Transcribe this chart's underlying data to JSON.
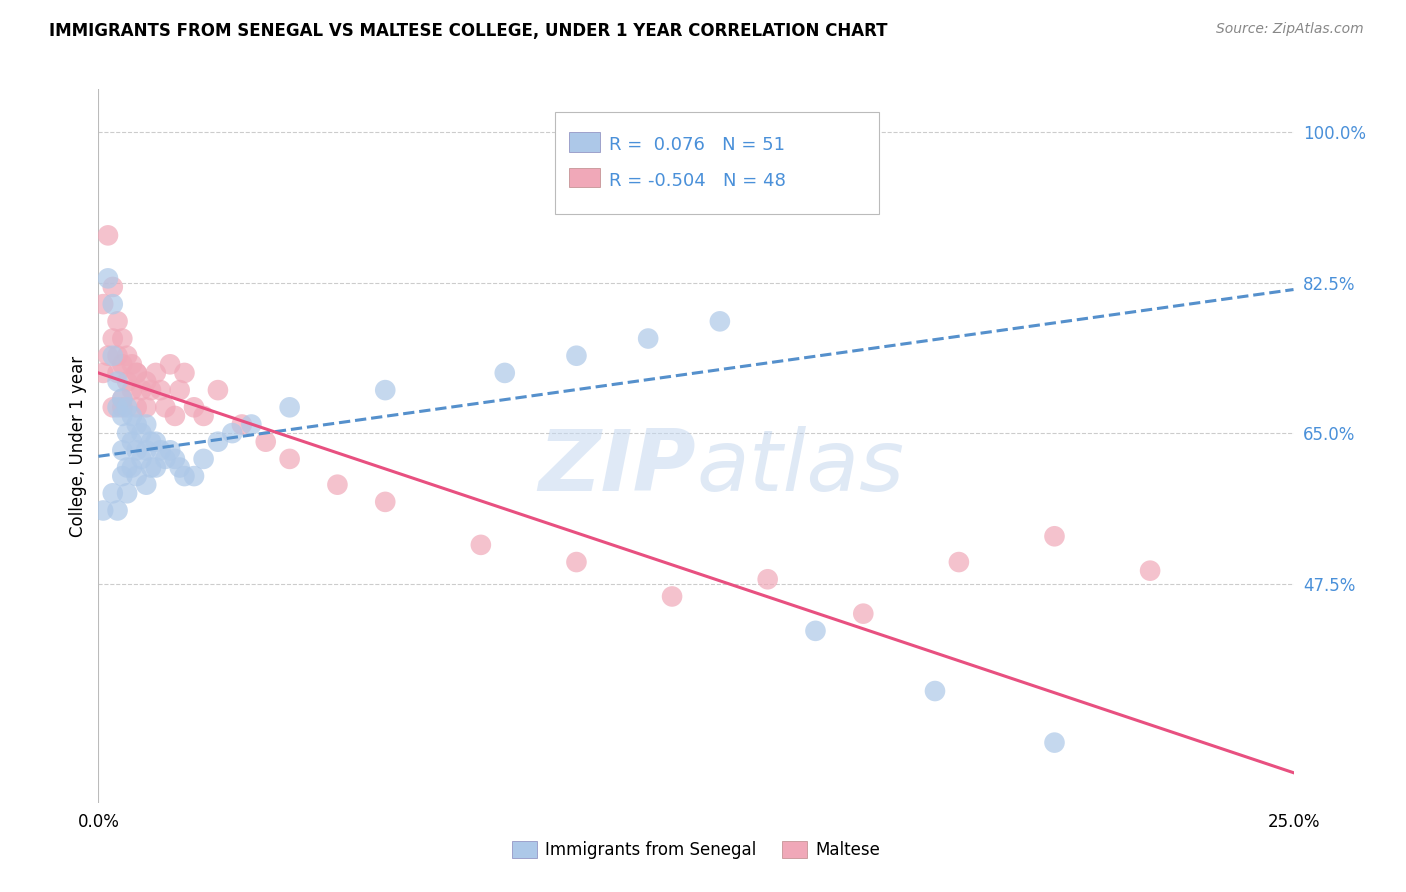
{
  "title": "IMMIGRANTS FROM SENEGAL VS MALTESE COLLEGE, UNDER 1 YEAR CORRELATION CHART",
  "source": "Source: ZipAtlas.com",
  "ylabel": "College, Under 1 year",
  "watermark": "ZIPatlas",
  "series1_label": "Immigrants from Senegal",
  "series2_label": "Maltese",
  "series1_R": "0.076",
  "series1_N": "51",
  "series2_R": "-0.504",
  "series2_N": "48",
  "xlim": [
    0.0,
    0.25
  ],
  "ylim": [
    0.22,
    1.05
  ],
  "yticks": [
    0.475,
    0.65,
    0.825,
    1.0
  ],
  "ytick_labels": [
    "47.5%",
    "65.0%",
    "82.5%",
    "100.0%"
  ],
  "xticks": [
    0.0,
    0.05,
    0.1,
    0.15,
    0.2,
    0.25
  ],
  "xtick_labels": [
    "0.0%",
    "",
    "",
    "",
    "",
    "25.0%"
  ],
  "series1_color": "#adc8e8",
  "series2_color": "#f0a8b8",
  "series1_line_color": "#5590cc",
  "series2_line_color": "#e85080",
  "right_tick_color": "#4a90d9",
  "legend_text_color": "#4a90d9",
  "grid_color": "#cccccc",
  "background_color": "#ffffff",
  "series1_x": [
    0.002,
    0.003,
    0.003,
    0.004,
    0.004,
    0.005,
    0.005,
    0.005,
    0.005,
    0.006,
    0.006,
    0.006,
    0.007,
    0.007,
    0.007,
    0.008,
    0.008,
    0.008,
    0.009,
    0.009,
    0.01,
    0.01,
    0.01,
    0.011,
    0.011,
    0.012,
    0.012,
    0.013,
    0.014,
    0.015,
    0.016,
    0.017,
    0.018,
    0.02,
    0.022,
    0.025,
    0.028,
    0.032,
    0.04,
    0.06,
    0.085,
    0.1,
    0.115,
    0.13,
    0.15,
    0.175,
    0.2,
    0.001,
    0.003,
    0.004,
    0.006
  ],
  "series1_y": [
    0.83,
    0.8,
    0.74,
    0.71,
    0.68,
    0.69,
    0.67,
    0.63,
    0.6,
    0.68,
    0.65,
    0.61,
    0.67,
    0.64,
    0.61,
    0.66,
    0.63,
    0.6,
    0.65,
    0.62,
    0.66,
    0.63,
    0.59,
    0.64,
    0.61,
    0.64,
    0.61,
    0.63,
    0.62,
    0.63,
    0.62,
    0.61,
    0.6,
    0.6,
    0.62,
    0.64,
    0.65,
    0.66,
    0.68,
    0.7,
    0.72,
    0.74,
    0.76,
    0.78,
    0.42,
    0.35,
    0.29,
    0.56,
    0.58,
    0.56,
    0.58
  ],
  "series2_x": [
    0.001,
    0.002,
    0.003,
    0.003,
    0.004,
    0.004,
    0.005,
    0.005,
    0.005,
    0.006,
    0.006,
    0.007,
    0.007,
    0.008,
    0.008,
    0.009,
    0.01,
    0.01,
    0.011,
    0.012,
    0.013,
    0.014,
    0.015,
    0.016,
    0.017,
    0.018,
    0.02,
    0.022,
    0.025,
    0.03,
    0.035,
    0.04,
    0.05,
    0.06,
    0.08,
    0.1,
    0.12,
    0.14,
    0.16,
    0.18,
    0.2,
    0.22,
    0.001,
    0.002,
    0.003,
    0.004,
    0.005,
    0.008
  ],
  "series2_y": [
    0.8,
    0.88,
    0.82,
    0.76,
    0.78,
    0.74,
    0.76,
    0.73,
    0.69,
    0.74,
    0.71,
    0.73,
    0.7,
    0.72,
    0.68,
    0.7,
    0.71,
    0.68,
    0.7,
    0.72,
    0.7,
    0.68,
    0.73,
    0.67,
    0.7,
    0.72,
    0.68,
    0.67,
    0.7,
    0.66,
    0.64,
    0.62,
    0.59,
    0.57,
    0.52,
    0.5,
    0.46,
    0.48,
    0.44,
    0.5,
    0.53,
    0.49,
    0.72,
    0.74,
    0.68,
    0.72,
    0.68,
    0.72
  ],
  "line1_x0": 0.0,
  "line1_y0": 0.623,
  "line1_x1": 0.25,
  "line1_y1": 0.817,
  "line2_x0": 0.0,
  "line2_y0": 0.72,
  "line2_x1": 0.25,
  "line2_y1": 0.255
}
